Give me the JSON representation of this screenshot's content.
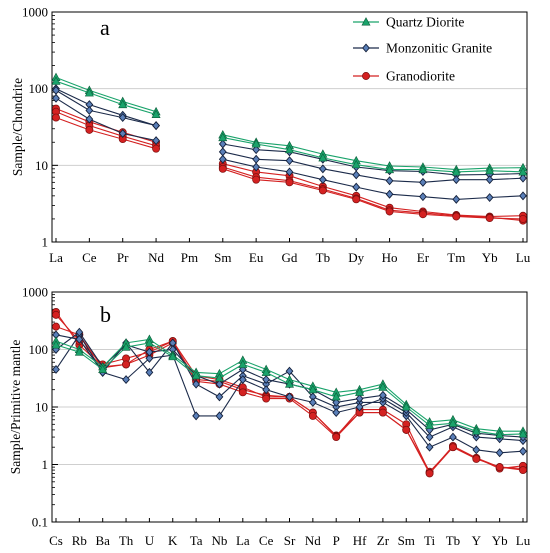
{
  "chart_data": [
    {
      "id": "a",
      "type": "line",
      "panel_label": "a",
      "ylabel": "Sample/Chondrite",
      "yscale": "log",
      "ylim": [
        1,
        1000
      ],
      "y_ticks": [
        "1",
        "10",
        "100",
        "1000"
      ],
      "grid": true,
      "legend_position": "top-right",
      "categories": [
        "La",
        "Ce",
        "Pr",
        "Nd",
        "Pm",
        "Sm",
        "Eu",
        "Gd",
        "Tb",
        "Dy",
        "Ho",
        "Er",
        "Tm",
        "Yb",
        "Lu"
      ],
      "series": [
        {
          "name": "Quartz Diorite",
          "group": "qd",
          "color": "#1aa36b",
          "marker": "triangle",
          "show_in_legend": true,
          "values": [
            140,
            95,
            68,
            50,
            null,
            25,
            20,
            18,
            14,
            11.5,
            9.8,
            9.5,
            8.8,
            9.2,
            9.3
          ]
        },
        {
          "name": "Quartz Diorite",
          "group": "qd",
          "color": "#1aa36b",
          "marker": "triangle",
          "show_in_legend": false,
          "values": [
            125,
            88,
            62,
            46,
            null,
            23,
            19,
            16,
            12.5,
            10.2,
            8.8,
            8.8,
            8.2,
            8.5,
            8.2
          ]
        },
        {
          "name": "Monzonitic Granite",
          "group": "mg",
          "color": "#1c2b4a",
          "marker": "diamond",
          "show_in_legend": true,
          "values": [
            100,
            62,
            45,
            33,
            null,
            19,
            16,
            15,
            12,
            9.5,
            8.5,
            8.3,
            7.5,
            7.6,
            7.8
          ]
        },
        {
          "name": "Monzonitic Granite",
          "group": "mg",
          "color": "#1c2b4a",
          "marker": "diamond",
          "show_in_legend": false,
          "values": [
            95,
            52,
            42,
            33,
            null,
            15,
            12,
            11.5,
            9,
            7.5,
            6.3,
            6.0,
            6.5,
            6.5,
            6.8
          ]
        },
        {
          "name": "Monzonitic Granite",
          "group": "mg",
          "color": "#1c2b4a",
          "marker": "diamond",
          "show_in_legend": false,
          "values": [
            75,
            40,
            26,
            21,
            null,
            12,
            9.5,
            8.2,
            6.5,
            5.2,
            4.2,
            3.9,
            3.6,
            3.8,
            4.0
          ]
        },
        {
          "name": "Granodiorite",
          "group": "gd",
          "color": "#d42121",
          "marker": "circle",
          "show_in_legend": true,
          "values": [
            55,
            37,
            27,
            20,
            null,
            10.5,
            8.2,
            7.3,
            5.3,
            4.0,
            2.8,
            2.5,
            2.25,
            2.15,
            2.2
          ]
        },
        {
          "name": "Granodiorite",
          "group": "gd",
          "color": "#d42121",
          "marker": "circle",
          "show_in_legend": false,
          "values": [
            50,
            33,
            24,
            18,
            null,
            9.5,
            7.0,
            6.3,
            4.9,
            3.7,
            2.6,
            2.4,
            2.2,
            2.1,
            1.9
          ]
        },
        {
          "name": "Granodiorite",
          "group": "gd",
          "color": "#d42121",
          "marker": "circle",
          "show_in_legend": false,
          "values": [
            42,
            29,
            22,
            16.5,
            null,
            9.0,
            6.5,
            6.0,
            4.7,
            3.6,
            2.5,
            2.3,
            2.15,
            2.05,
            2.0
          ]
        }
      ],
      "legend": [
        {
          "label": "Quartz Diorite",
          "color": "#1aa36b",
          "marker": "triangle"
        },
        {
          "label": "Monzonitic Granite",
          "color": "#1c2b4a",
          "marker": "diamond"
        },
        {
          "label": "Granodiorite",
          "color": "#d42121",
          "marker": "circle"
        }
      ]
    },
    {
      "id": "b",
      "type": "line",
      "panel_label": "b",
      "ylabel": "Sample/Primitive mantle",
      "yscale": "log",
      "ylim": [
        0.1,
        1000
      ],
      "y_ticks": [
        "0.1",
        "1",
        "10",
        "100",
        "1000"
      ],
      "grid": true,
      "categories": [
        "Cs",
        "Rb",
        "Ba",
        "Th",
        "U",
        "K",
        "Ta",
        "Nb",
        "La",
        "Ce",
        "Sr",
        "Nd",
        "P",
        "Hf",
        "Zr",
        "Sm",
        "Ti",
        "Tb",
        "Y",
        "Yb",
        "Lu"
      ],
      "series": [
        {
          "name": "Quartz Diorite",
          "group": "qd",
          "color": "#1aa36b",
          "marker": "triangle",
          "values": [
            140,
            100,
            50,
            130,
            150,
            80,
            40,
            38,
            65,
            45,
            30,
            23,
            18,
            20,
            25,
            11,
            5.5,
            6,
            4.2,
            3.8,
            3.8
          ]
        },
        {
          "name": "Quartz Diorite",
          "group": "qd",
          "color": "#1aa36b",
          "marker": "triangle",
          "values": [
            120,
            90,
            45,
            110,
            130,
            75,
            35,
            32,
            55,
            40,
            25,
            20,
            15,
            18,
            22,
            10,
            4.8,
            5.2,
            3.8,
            3.3,
            3.4
          ]
        },
        {
          "name": "Monzonitic Granite",
          "group": "mg",
          "color": "#1c2b4a",
          "marker": "diamond",
          "values": [
            45,
            180,
            40,
            130,
            40,
            130,
            25,
            15,
            35,
            25,
            42,
            15,
            10,
            12,
            12,
            7,
            2.0,
            3,
            1.8,
            1.6,
            1.7
          ]
        },
        {
          "name": "Monzonitic Granite",
          "group": "mg",
          "color": "#1c2b4a",
          "marker": "diamond",
          "values": [
            180,
            150,
            40,
            30,
            70,
            80,
            7,
            7,
            30,
            20,
            15,
            12,
            8,
            10,
            14,
            8,
            3.0,
            4.5,
            3.0,
            2.8,
            2.6
          ]
        },
        {
          "name": "Monzonitic Granite",
          "group": "mg",
          "color": "#1c2b4a",
          "marker": "diamond",
          "values": [
            100,
            200,
            50,
            120,
            90,
            100,
            35,
            25,
            45,
            30,
            25,
            20,
            12,
            14,
            16,
            9,
            4,
            5,
            3.5,
            3.2,
            3.0
          ]
        },
        {
          "name": "Granodiorite",
          "group": "gd",
          "color": "#d42121",
          "marker": "circle",
          "values": [
            450,
            120,
            50,
            55,
            80,
            130,
            30,
            28,
            20,
            16,
            15,
            8,
            3.2,
            8,
            8,
            4,
            0.75,
            2.0,
            1.3,
            0.9,
            0.85
          ]
        },
        {
          "name": "Granodiorite",
          "group": "gd",
          "color": "#d42121",
          "marker": "circle",
          "values": [
            400,
            140,
            55,
            70,
            90,
            140,
            35,
            30,
            22,
            15,
            15,
            8,
            3.1,
            9,
            9,
            5,
            0.72,
            2.1,
            1.3,
            0.85,
            0.95
          ]
        },
        {
          "name": "Granodiorite",
          "group": "gd",
          "color": "#d42121",
          "marker": "circle",
          "values": [
            250,
            180,
            48,
            55,
            100,
            140,
            28,
            25,
            18,
            14,
            14,
            7,
            3.0,
            8,
            8,
            4,
            0.7,
            2.0,
            1.25,
            0.9,
            0.8
          ]
        }
      ]
    }
  ]
}
